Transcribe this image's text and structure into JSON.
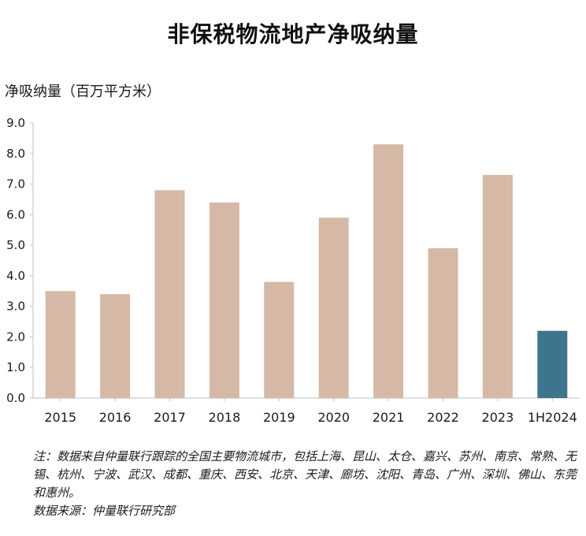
{
  "chart_data": {
    "type": "bar",
    "title": "非保税物流地产净吸纳量",
    "ylabel": "净吸纳量（百万平方米）",
    "xlabel": "",
    "categories": [
      "2015",
      "2016",
      "2017",
      "2018",
      "2019",
      "2020",
      "2021",
      "2022",
      "2023",
      "1H2024"
    ],
    "values": [
      3.5,
      3.4,
      6.8,
      6.4,
      3.8,
      5.9,
      8.3,
      4.9,
      7.3,
      2.2
    ],
    "colors": [
      "#d5b8a6",
      "#d5b8a6",
      "#d5b8a6",
      "#d5b8a6",
      "#d5b8a6",
      "#d5b8a6",
      "#d5b8a6",
      "#d5b8a6",
      "#d5b8a6",
      "#3f758c"
    ],
    "ylim": [
      0,
      9
    ],
    "yticks": [
      "0.0",
      "1.0",
      "2.0",
      "3.0",
      "4.0",
      "5.0",
      "6.0",
      "7.0",
      "8.0",
      "9.0"
    ],
    "grid": false,
    "legend": "none"
  },
  "notes": {
    "note_text": "注：数据来自仲量联行跟踪的全国主要物流城市，包括上海、昆山、太仓、嘉兴、苏州、南京、常熟、无锡、杭州、宁波、武汉、成都、重庆、西安、北京、天津、廊坊、沈阳、青岛、广州、深圳、佛山、东莞和惠州。",
    "source_text": "数据来源：仲量联行研究部"
  }
}
